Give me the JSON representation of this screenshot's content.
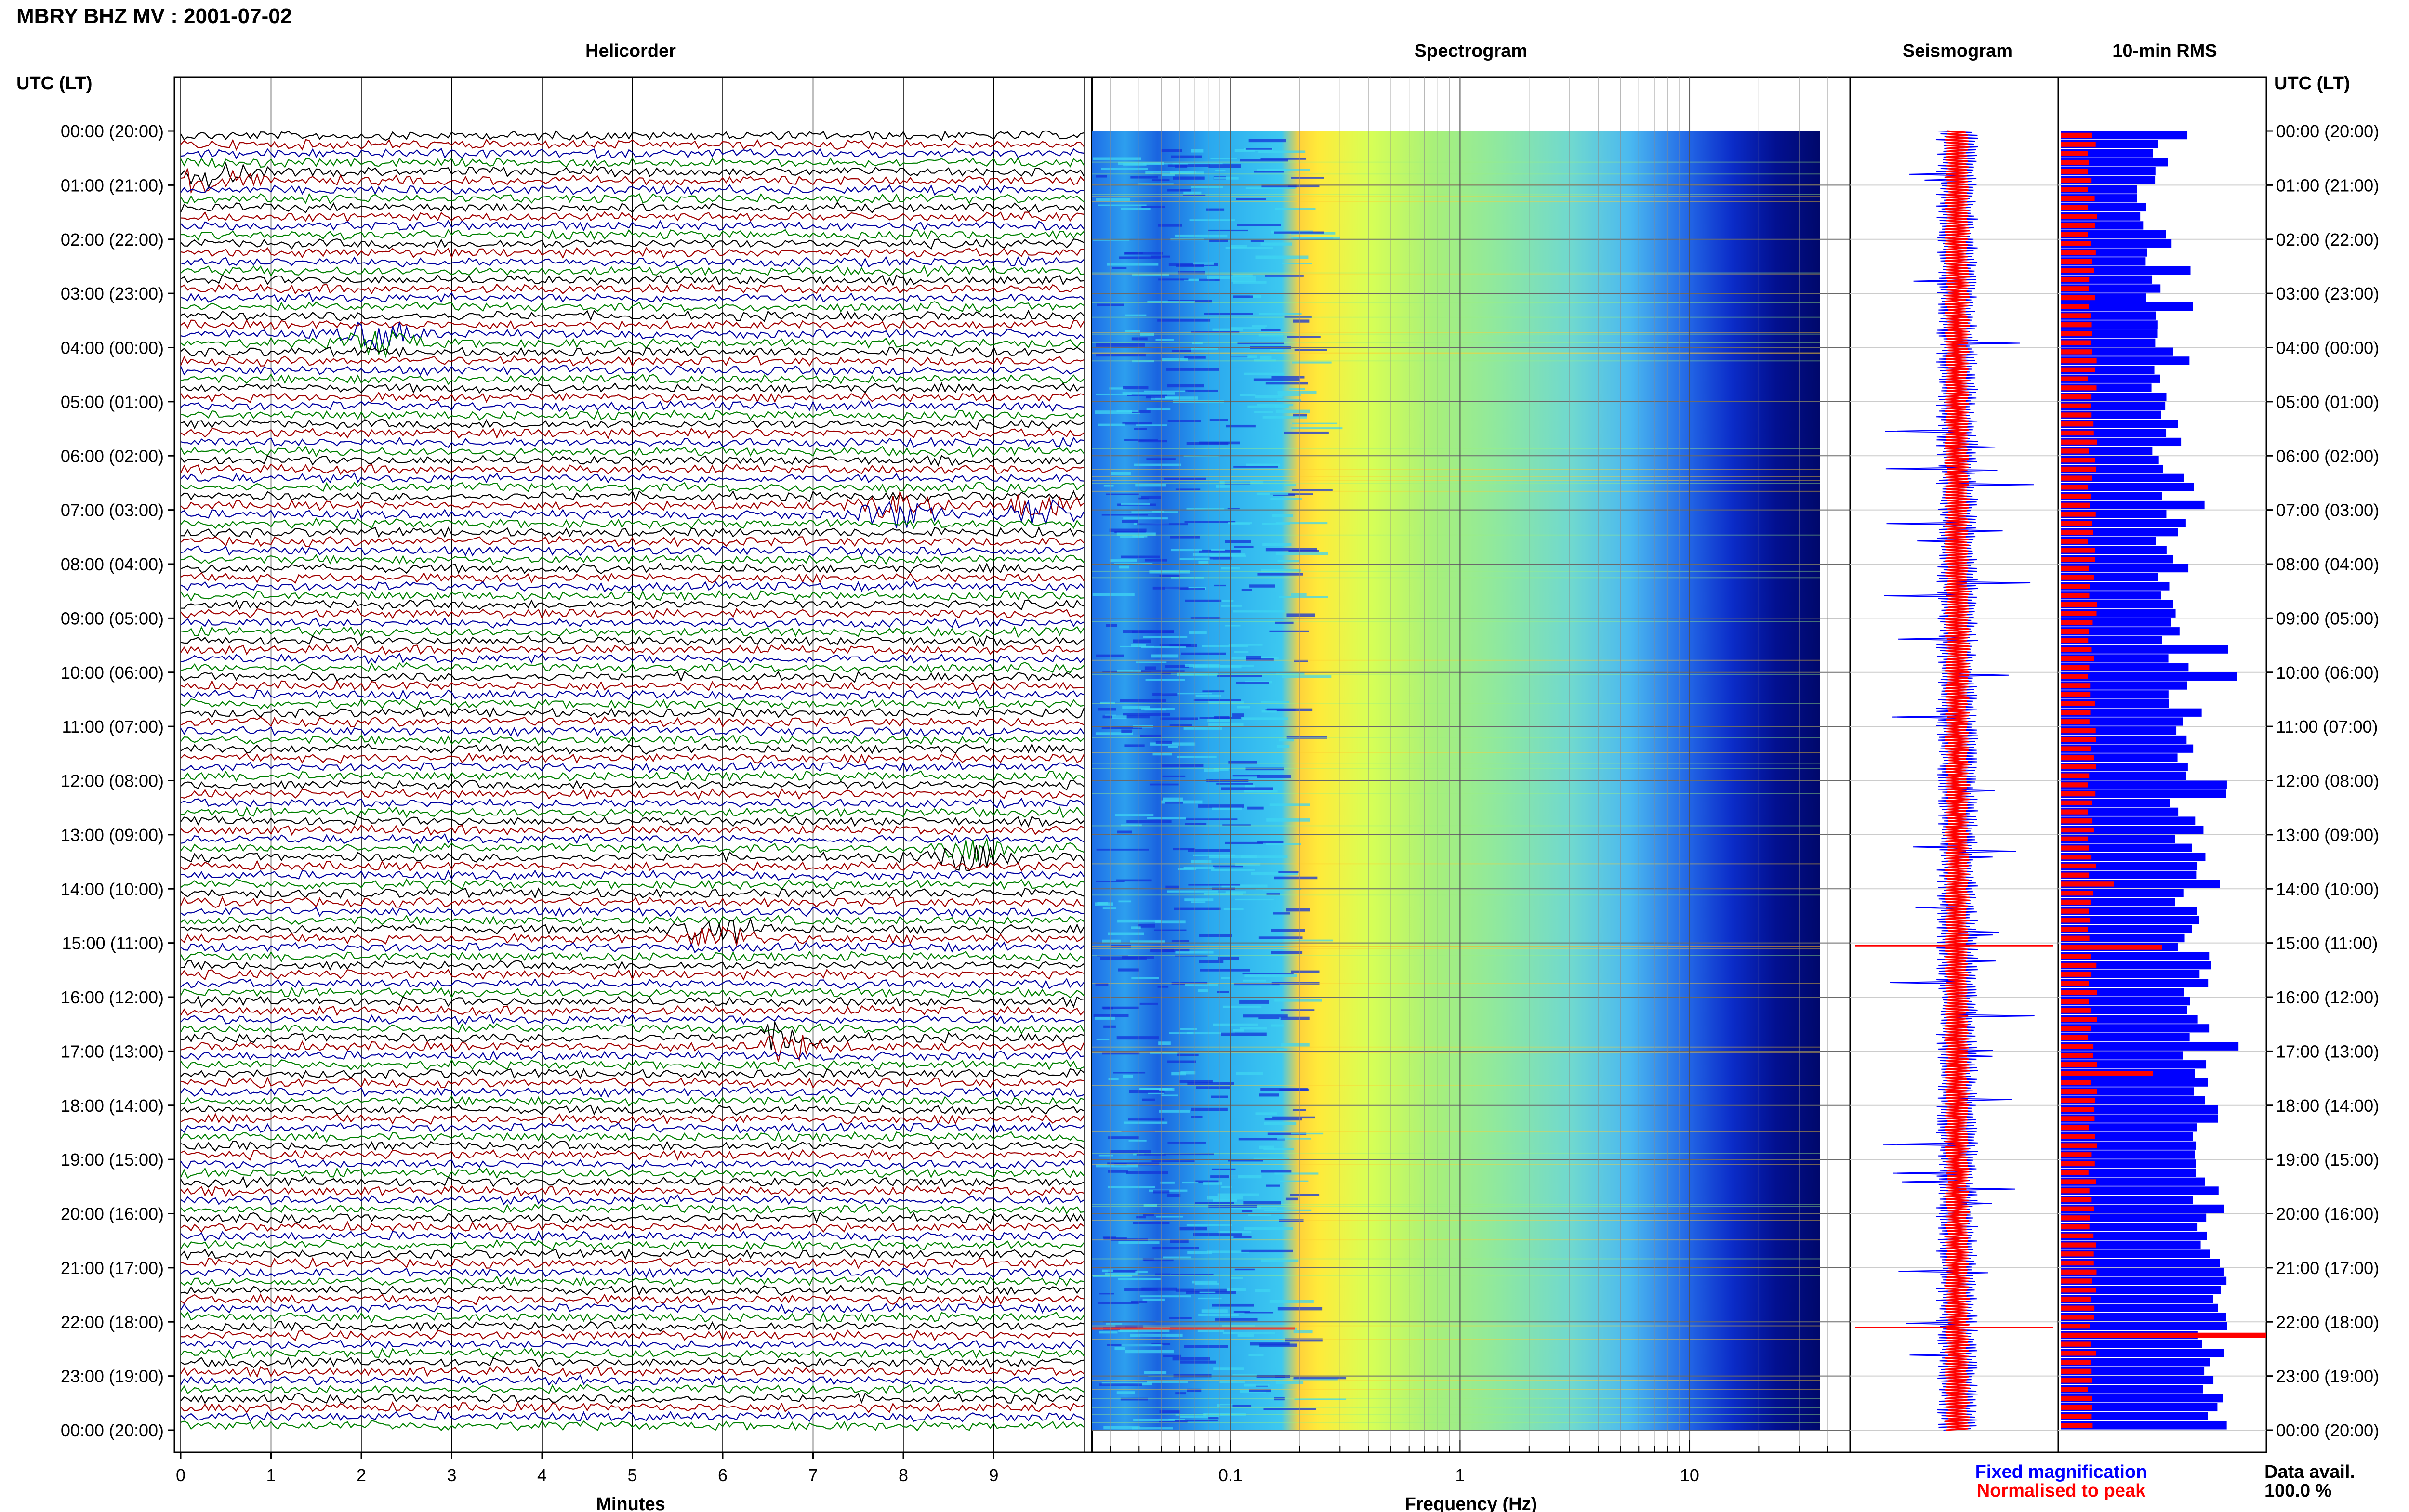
{
  "header": {
    "title": "MBRY BHZ MV : 2001-07-02"
  },
  "panels": {
    "helicorder": "Helicorder",
    "spectrogram": "Spectrogram",
    "seismogram": "Seismogram",
    "rms": "10-min RMS"
  },
  "time_axis": {
    "label": "UTC (LT)",
    "ticks": [
      "00:00 (20:00)",
      "01:00 (21:00)",
      "02:00 (22:00)",
      "03:00 (23:00)",
      "04:00 (00:00)",
      "05:00 (01:00)",
      "06:00 (02:00)",
      "07:00 (03:00)",
      "08:00 (04:00)",
      "09:00 (05:00)",
      "10:00 (06:00)",
      "11:00 (07:00)",
      "12:00 (08:00)",
      "13:00 (09:00)",
      "14:00 (10:00)",
      "15:00 (11:00)",
      "16:00 (12:00)",
      "17:00 (13:00)",
      "18:00 (14:00)",
      "19:00 (15:00)",
      "20:00 (16:00)",
      "21:00 (17:00)",
      "22:00 (18:00)",
      "23:00 (19:00)",
      "00:00 (20:00)"
    ]
  },
  "legend": {
    "fixed": "Fixed magnification",
    "normalised": "Normalised to peak",
    "fixed_color": "#0000ff",
    "normalised_color": "#ff0000"
  },
  "data_avail": {
    "label": "Data avail.",
    "value": "100.0 %"
  },
  "chart_data": [
    {
      "type": "line",
      "title": "Helicorder",
      "xlabel": "Minutes",
      "xlim": [
        0,
        10
      ],
      "x_ticks": [
        "0",
        "1",
        "2",
        "3",
        "4",
        "5",
        "6",
        "7",
        "8",
        "9"
      ],
      "rows": 144,
      "trace_colors": [
        "#000000",
        "#a00000",
        "#0000a0",
        "#008000"
      ],
      "events_minutes_hours": [
        {
          "hour": 0.9,
          "minute": 0.3
        },
        {
          "hour": 3.8,
          "minute": 2.2
        },
        {
          "hour": 7.05,
          "minute": 7.9
        },
        {
          "hour": 7.0,
          "minute": 9.5
        },
        {
          "hour": 13.4,
          "minute": 8.7
        },
        {
          "hour": 14.8,
          "minute": 6.0
        },
        {
          "hour": 16.9,
          "minute": 6.7
        }
      ]
    },
    {
      "type": "heatmap",
      "title": "Spectrogram",
      "xlabel": "Frequency (Hz)",
      "x_scale": "log",
      "xlim": [
        0.025,
        50
      ],
      "x_ticks": [
        "0.1",
        "1",
        "10"
      ],
      "colormap": [
        "#00007f",
        "#0000ff",
        "#00bfff",
        "#7fffbf",
        "#ffff00",
        "#ff7f00",
        "#ff0000"
      ]
    },
    {
      "type": "line",
      "title": "Seismogram",
      "series": [
        {
          "name": "Fixed magnification",
          "color": "#0000ff"
        },
        {
          "name": "Normalised to peak",
          "color": "#ff0000"
        }
      ]
    },
    {
      "type": "bar",
      "title": "10-min RMS",
      "series": [
        {
          "name": "Fixed magnification",
          "color": "#0000ff"
        },
        {
          "name": "Normalised to peak",
          "color": "#ff0000"
        }
      ]
    }
  ]
}
